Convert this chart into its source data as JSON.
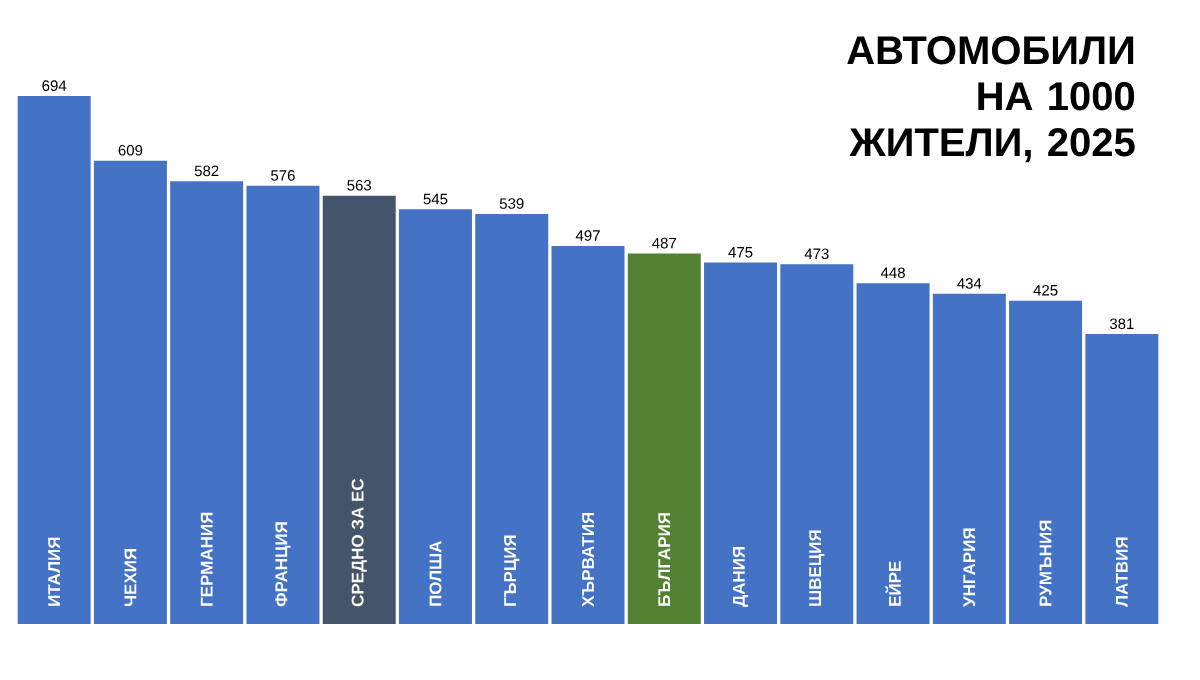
{
  "chart_data": {
    "type": "bar",
    "title": "АВТОМОБИЛИ НА 1000 ЖИТЕЛИ, 2025",
    "categories": [
      "ИТАЛИЯ",
      "ЧЕХИЯ",
      "ГЕРМАНИЯ",
      "ФРАНЦИЯ",
      "СРЕДНО ЗА ЕС",
      "ПОЛША",
      "ГЪРЦИЯ",
      "ХЪРВАТИЯ",
      "БЪЛГАРИЯ",
      "ДАНИЯ",
      "ШВЕЦИЯ",
      "ЕЙРЕ",
      "УНГАРИЯ",
      "РУМЪНИЯ",
      "ЛАТВИЯ"
    ],
    "values": [
      694,
      609,
      582,
      576,
      563,
      545,
      539,
      497,
      487,
      475,
      473,
      448,
      434,
      425,
      381
    ],
    "colors": [
      "#4472c4",
      "#4472c4",
      "#4472c4",
      "#4472c4",
      "#44546a",
      "#4472c4",
      "#4472c4",
      "#4472c4",
      "#548235",
      "#4472c4",
      "#4472c4",
      "#4472c4",
      "#4472c4",
      "#4472c4",
      "#4472c4"
    ],
    "data_labels": true
  }
}
